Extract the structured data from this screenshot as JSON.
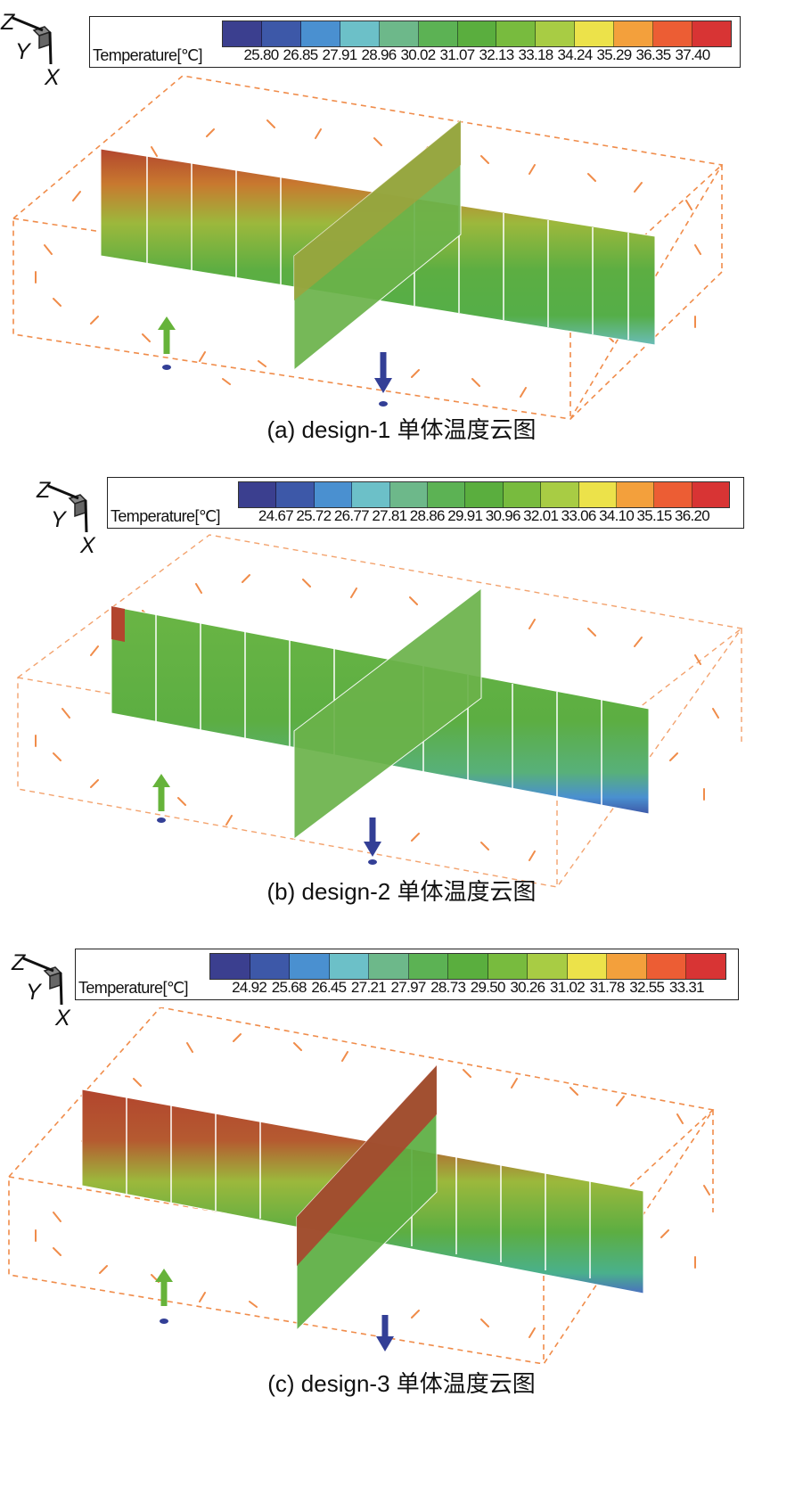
{
  "panels": [
    {
      "id": "a",
      "axes": {
        "z": "Z",
        "y": "Y",
        "x": "X"
      },
      "legend": {
        "title": "Temperature[℃]",
        "ticks": [
          "25.80",
          "26.85",
          "27.91",
          "28.96",
          "30.02",
          "31.07",
          "32.13",
          "33.18",
          "34.24",
          "35.29",
          "36.35",
          "37.40"
        ]
      },
      "caption": "(a) design-1 单体温度云图"
    },
    {
      "id": "b",
      "axes": {
        "z": "Z",
        "y": "Y",
        "x": "X"
      },
      "legend": {
        "title": "Temperature[℃]",
        "ticks": [
          "24.67",
          "25.72",
          "26.77",
          "27.81",
          "28.86",
          "29.91",
          "30.96",
          "32.01",
          "33.06",
          "34.10",
          "35.15",
          "36.20"
        ]
      },
      "caption": "(b) design-2 单体温度云图"
    },
    {
      "id": "c",
      "axes": {
        "z": "Z",
        "y": "Y",
        "x": "X"
      },
      "legend": {
        "title": "Temperature[℃]",
        "ticks": [
          "24.92",
          "25.68",
          "26.45",
          "27.21",
          "27.97",
          "28.73",
          "29.50",
          "30.26",
          "31.02",
          "31.78",
          "32.55",
          "33.31"
        ]
      },
      "caption": "(c) design-3 单体温度云图"
    }
  ],
  "colorbar": [
    "#3b3f8f",
    "#3d58a8",
    "#4a90d0",
    "#6cc0c8",
    "#6db88a",
    "#5cb254",
    "#5aae3e",
    "#78bb3e",
    "#a8cc44",
    "#ece24a",
    "#f3a03c",
    "#ec5d34",
    "#d83434"
  ],
  "colors": {
    "airflow": "#f08c4a",
    "inlet_arrow": "#66b33a",
    "outlet_arrow": "#333f96"
  }
}
